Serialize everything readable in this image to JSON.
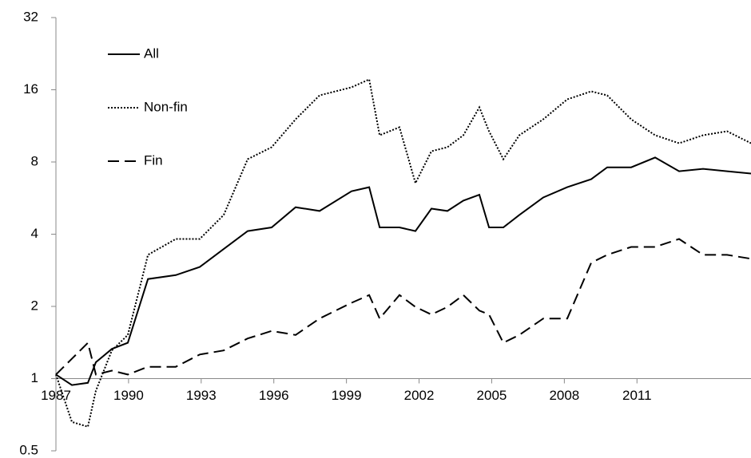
{
  "chart_data": {
    "type": "line",
    "x": [
      1987,
      1987.66,
      1988.32,
      1988.65,
      1989.31,
      1989.97,
      1990.8,
      1991.95,
      1992.94,
      1993.93,
      1994.92,
      1995.91,
      1996.9,
      1997.89,
      1999.21,
      1999.94,
      2000.37,
      2001.19,
      2001.85,
      2002.51,
      2003.17,
      2003.83,
      2004.49,
      2004.89,
      2005.48,
      2006.14,
      2007.13,
      2008.12,
      2009.11,
      2009.77,
      2010.76,
      2011.75,
      2012.74,
      2013.73,
      2014.72,
      2015.71
    ],
    "series": [
      {
        "name": "All",
        "color": "#000000",
        "dash": "solid",
        "values": [
          1.04,
          0.94,
          0.96,
          1.17,
          1.33,
          1.41,
          2.6,
          2.7,
          2.92,
          3.47,
          4.12,
          4.27,
          5.18,
          5.0,
          6.04,
          6.28,
          4.27,
          4.27,
          4.12,
          5.11,
          5.0,
          5.52,
          5.84,
          4.27,
          4.27,
          4.81,
          5.69,
          6.28,
          6.78,
          7.6,
          7.6,
          8.35,
          7.32,
          7.49,
          7.32,
          7.16
        ]
      },
      {
        "name": "Non-fin",
        "color": "#000000",
        "dash": "dotted",
        "values": [
          1.04,
          0.66,
          0.63,
          0.89,
          1.31,
          1.52,
          3.28,
          3.82,
          3.82,
          4.81,
          8.22,
          9.22,
          12.05,
          15.17,
          16.38,
          17.67,
          10.34,
          11.16,
          6.53,
          8.87,
          9.22,
          10.34,
          13.52,
          10.74,
          8.22,
          10.34,
          12.05,
          14.6,
          15.76,
          15.17,
          12.05,
          10.34,
          9.58,
          10.34,
          10.74,
          9.58
        ]
      },
      {
        "name": "Fin",
        "color": "#000000",
        "dash": "dashed",
        "values": [
          1.04,
          1.21,
          1.41,
          1.04,
          1.08,
          1.04,
          1.12,
          1.12,
          1.26,
          1.31,
          1.47,
          1.58,
          1.52,
          1.78,
          2.07,
          2.23,
          1.78,
          2.23,
          1.99,
          1.85,
          1.99,
          2.23,
          1.92,
          1.85,
          1.41,
          1.52,
          1.78,
          1.78,
          3.04,
          3.28,
          3.54,
          3.54,
          3.82,
          3.28,
          3.28,
          3.16
        ]
      }
    ],
    "xlim": [
      1987,
      2015.71
    ],
    "xticks": [
      1987,
      1990,
      1993,
      1996,
      1999,
      2002,
      2005,
      2008,
      2011
    ],
    "ylim": [
      0.5,
      32
    ],
    "yticks": [
      0.5,
      1,
      2,
      4,
      8,
      16,
      32
    ],
    "ylog": true,
    "xaxis_crosses": 1,
    "grid": false,
    "legend": "top-left"
  }
}
